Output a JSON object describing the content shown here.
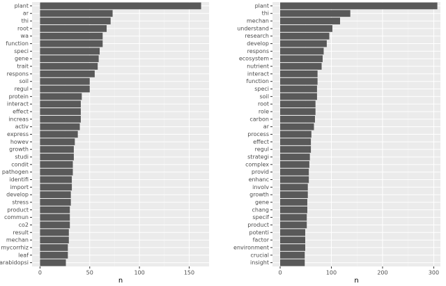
{
  "chart_data": [
    {
      "type": "bar",
      "orientation": "horizontal",
      "x_label": "n",
      "color": "#595959",
      "grid": true,
      "categories": [
        "plant",
        "ar",
        "thi",
        "root",
        "wa",
        "function",
        "speci",
        "gene",
        "trait",
        "respons",
        "soil",
        "regul",
        "protein",
        "interact",
        "effect",
        "increas",
        "activ",
        "express",
        "howev",
        "growth",
        "studi",
        "condit",
        "pathogen",
        "identifi",
        "import",
        "develop",
        "stress",
        "product",
        "commun",
        "co2",
        "result",
        "mechan",
        "mycorrhiz",
        "leaf",
        "arabidopsi"
      ],
      "values": [
        162,
        73,
        71,
        67,
        63,
        63,
        60,
        59,
        58,
        55,
        50,
        50,
        42,
        41,
        41,
        41,
        40,
        38,
        35,
        34,
        34,
        33,
        33,
        32,
        32,
        31,
        31,
        30,
        30,
        30,
        29,
        29,
        28,
        28,
        26
      ],
      "xlim": [
        -8,
        170
      ],
      "xticks": [
        0,
        50,
        100,
        150
      ]
    },
    {
      "type": "bar",
      "orientation": "horizontal",
      "x_label": "n",
      "color": "#595959",
      "grid": true,
      "categories": [
        "plant",
        "thi",
        "mechan",
        "understand",
        "research",
        "develop",
        "respons",
        "ecosystem",
        "nutrient",
        "interact",
        "function",
        "speci",
        "soil",
        "root",
        "role",
        "carbon",
        "ar",
        "process",
        "effect",
        "regul",
        "strategi",
        "complex",
        "provid",
        "enhanc",
        "involv",
        "growth",
        "gene",
        "chang",
        "specif",
        "product",
        "potenti",
        "factor",
        "environment",
        "crucial",
        "insight"
      ],
      "values": [
        307,
        137,
        117,
        102,
        96,
        91,
        85,
        83,
        81,
        73,
        73,
        72,
        72,
        69,
        69,
        68,
        66,
        61,
        60,
        60,
        58,
        57,
        56,
        56,
        54,
        54,
        53,
        53,
        52,
        52,
        49,
        49,
        49,
        48,
        48
      ],
      "xlim": [
        -15,
        313
      ],
      "xticks": [
        0,
        100,
        200,
        300
      ]
    }
  ]
}
